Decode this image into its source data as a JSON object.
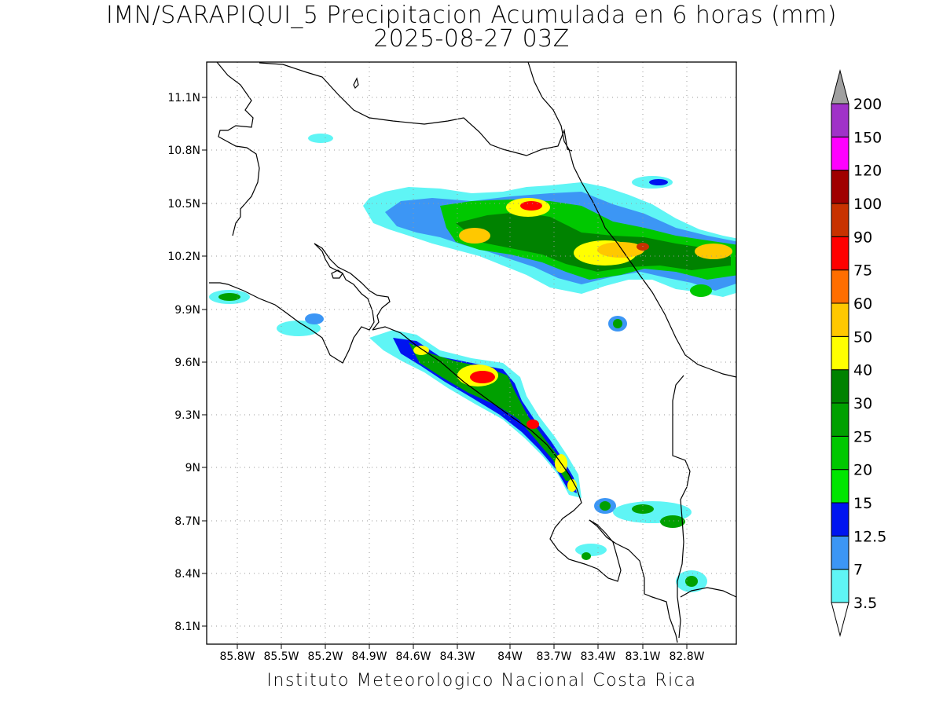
{
  "title": {
    "line1": "IMN/SARAPIQUI_5 Precipitacion Acumulada en 6 horas (mm)",
    "line2": "2025-08-27 03Z"
  },
  "footer": "Instituto Meteorologico Nacional Costa Rica",
  "map": {
    "lon_range": [
      -85.98,
      -82.6
    ],
    "lat_range": [
      8.0,
      11.3
    ],
    "lon_ticks": [
      "85.8W",
      "85.5W",
      "85.2W",
      "84.9W",
      "84.6W",
      "84.3W",
      "84W",
      "83.7W",
      "83.4W",
      "83.1W",
      "82.8W"
    ],
    "lat_ticks": [
      "11.1N",
      "10.8N",
      "10.5N",
      "10.2N",
      "9.9N",
      "9.6N",
      "9.3N",
      "9N",
      "8.7N",
      "8.4N",
      "8.1N"
    ],
    "grid": true
  },
  "colorbar": {
    "labels": [
      "3.5",
      "7",
      "12.5",
      "15",
      "20",
      "25",
      "30",
      "40",
      "50",
      "60",
      "75",
      "90",
      "100",
      "120",
      "150",
      "200"
    ],
    "colors": [
      "#5ff5f5",
      "#3c96f5",
      "#0014f0",
      "#00e600",
      "#00c800",
      "#00a000",
      "#008200",
      "#ffff00",
      "#ffc800",
      "#ff6e00",
      "#ff0000",
      "#c83200",
      "#a00000",
      "#ff00ff",
      "#a032c8",
      "#f5f5f5",
      "#a0a0a0"
    ]
  }
}
